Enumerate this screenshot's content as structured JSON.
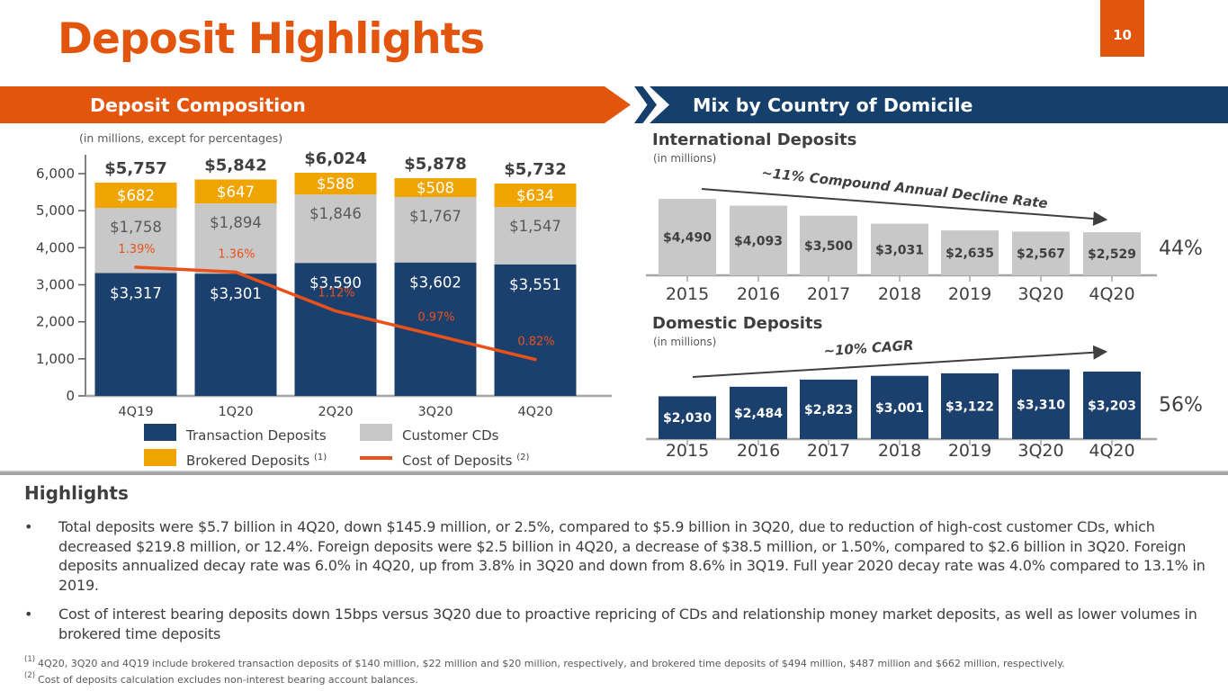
{
  "colors": {
    "orange": "#E3550C",
    "orange_line": "#E8521A",
    "navy": "#1C406E",
    "banner_blue": "#15406B",
    "bar_gray": "#C8C8C8",
    "gold": "#F0A400",
    "dark_text": "#3F3F3F",
    "mid_text": "#595959",
    "axis_gray": "#A6A6A6",
    "white": "#FFFFFF"
  },
  "page": {
    "title": "Deposit Highlights",
    "page_number": "10"
  },
  "banners": {
    "left": "Deposit Composition",
    "right": "Mix by Country of Domicile"
  },
  "highlights": {
    "title": "Highlights",
    "bullets": [
      "Total deposits were $5.7 billion in 4Q20, down $145.9 million, or 2.5%, compared to $5.9 billion in 3Q20, due to reduction of high-cost customer CDs, which decreased $219.8 million, or 12.4%. Foreign deposits were $2.5 billion in 4Q20, a decrease of $38.5 million, or 1.50%, compared to $2.6 billion in 3Q20. Foreign deposits annualized decay rate was 6.0% in 4Q20, up from 3.8% in 3Q20 and down from 8.6% in 3Q19. Full year 2020 decay rate was 4.0% compared to 13.1% in 2019.",
      "Cost of interest bearing deposits down 15bps versus 3Q20 due to proactive repricing of CDs and relationship money market deposits, as well as lower volumes in brokered time deposits"
    ],
    "footnotes": [
      {
        "sup": "(1)",
        "text": "4Q20, 3Q20 and 4Q19 include brokered transaction deposits of $140 million, $22 million and $20 million, respectively, and brokered time deposits of $494 million, $487 million and $662 million, respectively."
      },
      {
        "sup": "(2)",
        "text": "Cost of deposits calculation excludes non-interest bearing account balances."
      }
    ]
  },
  "chart_data": [
    {
      "id": "deposit-composition",
      "type": "bar",
      "subtype": "stacked-with-line",
      "units_note": "(in millions, except for percentages)",
      "categories": [
        "4Q19",
        "1Q20",
        "2Q20",
        "3Q20",
        "4Q20"
      ],
      "series": [
        {
          "name": "Transaction Deposits",
          "color_key": "navy",
          "values": [
            3317,
            3301,
            3590,
            3602,
            3551
          ],
          "labels": [
            "$3,317",
            "$3,301",
            "$3,590",
            "$3,602",
            "$3,551"
          ]
        },
        {
          "name": "Customer CDs",
          "color_key": "bar_gray",
          "values": [
            1758,
            1894,
            1846,
            1767,
            1547
          ],
          "labels": [
            "$1,758",
            "$1,894",
            "$1,846",
            "$1,767",
            "$1,547"
          ]
        },
        {
          "name": "Brokered Deposits",
          "color_key": "gold",
          "values": [
            682,
            647,
            588,
            508,
            634
          ],
          "labels": [
            "$682",
            "$647",
            "$588",
            "$508",
            "$634"
          ]
        }
      ],
      "totals": {
        "values": [
          5757,
          5842,
          6024,
          5878,
          5732
        ],
        "labels": [
          "$5,757",
          "$5,842",
          "$6,024",
          "$5,878",
          "$5,732"
        ]
      },
      "line": {
        "name": "Cost of Deposits",
        "color_key": "orange_line",
        "values": [
          1.39,
          1.36,
          1.12,
          0.97,
          0.82
        ],
        "labels": [
          "1.39%",
          "1.36%",
          "1.12%",
          "0.97%",
          "0.82%"
        ]
      },
      "y_axis": {
        "min": 0,
        "max": 6000,
        "tick_step": 1000,
        "tick_labels": [
          "0",
          "1,000",
          "2,000",
          "3,000",
          "4,000",
          "5,000",
          "6,000"
        ]
      },
      "legend": [
        {
          "label": "Transaction Deposits",
          "sup": "",
          "swatch": "navy"
        },
        {
          "label": "Customer CDs",
          "sup": "",
          "swatch": "gray"
        },
        {
          "label": "Brokered Deposits",
          "sup": "(1)",
          "swatch": "gold"
        },
        {
          "label": "Cost of Deposits",
          "sup": "(2)",
          "swatch": "line"
        }
      ]
    },
    {
      "id": "international-deposits",
      "type": "bar",
      "title": "International Deposits",
      "units": "(in millions)",
      "categories": [
        "2015",
        "2016",
        "2017",
        "2018",
        "2019",
        "3Q20",
        "4Q20"
      ],
      "values": [
        4490,
        4093,
        3500,
        3031,
        2635,
        2567,
        2529
      ],
      "labels": [
        "$4,490",
        "$4,093",
        "$3,500",
        "$3,031",
        "$2,635",
        "$2,567",
        "$2,529"
      ],
      "bar_color_key": "bar_gray",
      "label_color_key": "dark_text",
      "annotation": "~11% Compound Annual Decline Rate",
      "share_label": "44%"
    },
    {
      "id": "domestic-deposits",
      "type": "bar",
      "title": "Domestic Deposits",
      "units": "(in millions)",
      "categories": [
        "2015",
        "2016",
        "2017",
        "2018",
        "2019",
        "3Q20",
        "4Q20"
      ],
      "values": [
        2030,
        2484,
        2823,
        3001,
        3122,
        3310,
        3203
      ],
      "labels": [
        "$2,030",
        "$2,484",
        "$2,823",
        "$3,001",
        "$3,122",
        "$3,310",
        "$3,203"
      ],
      "bar_color_key": "navy",
      "label_color_key": "white",
      "annotation": "~10% CAGR",
      "share_label": "56%"
    }
  ]
}
